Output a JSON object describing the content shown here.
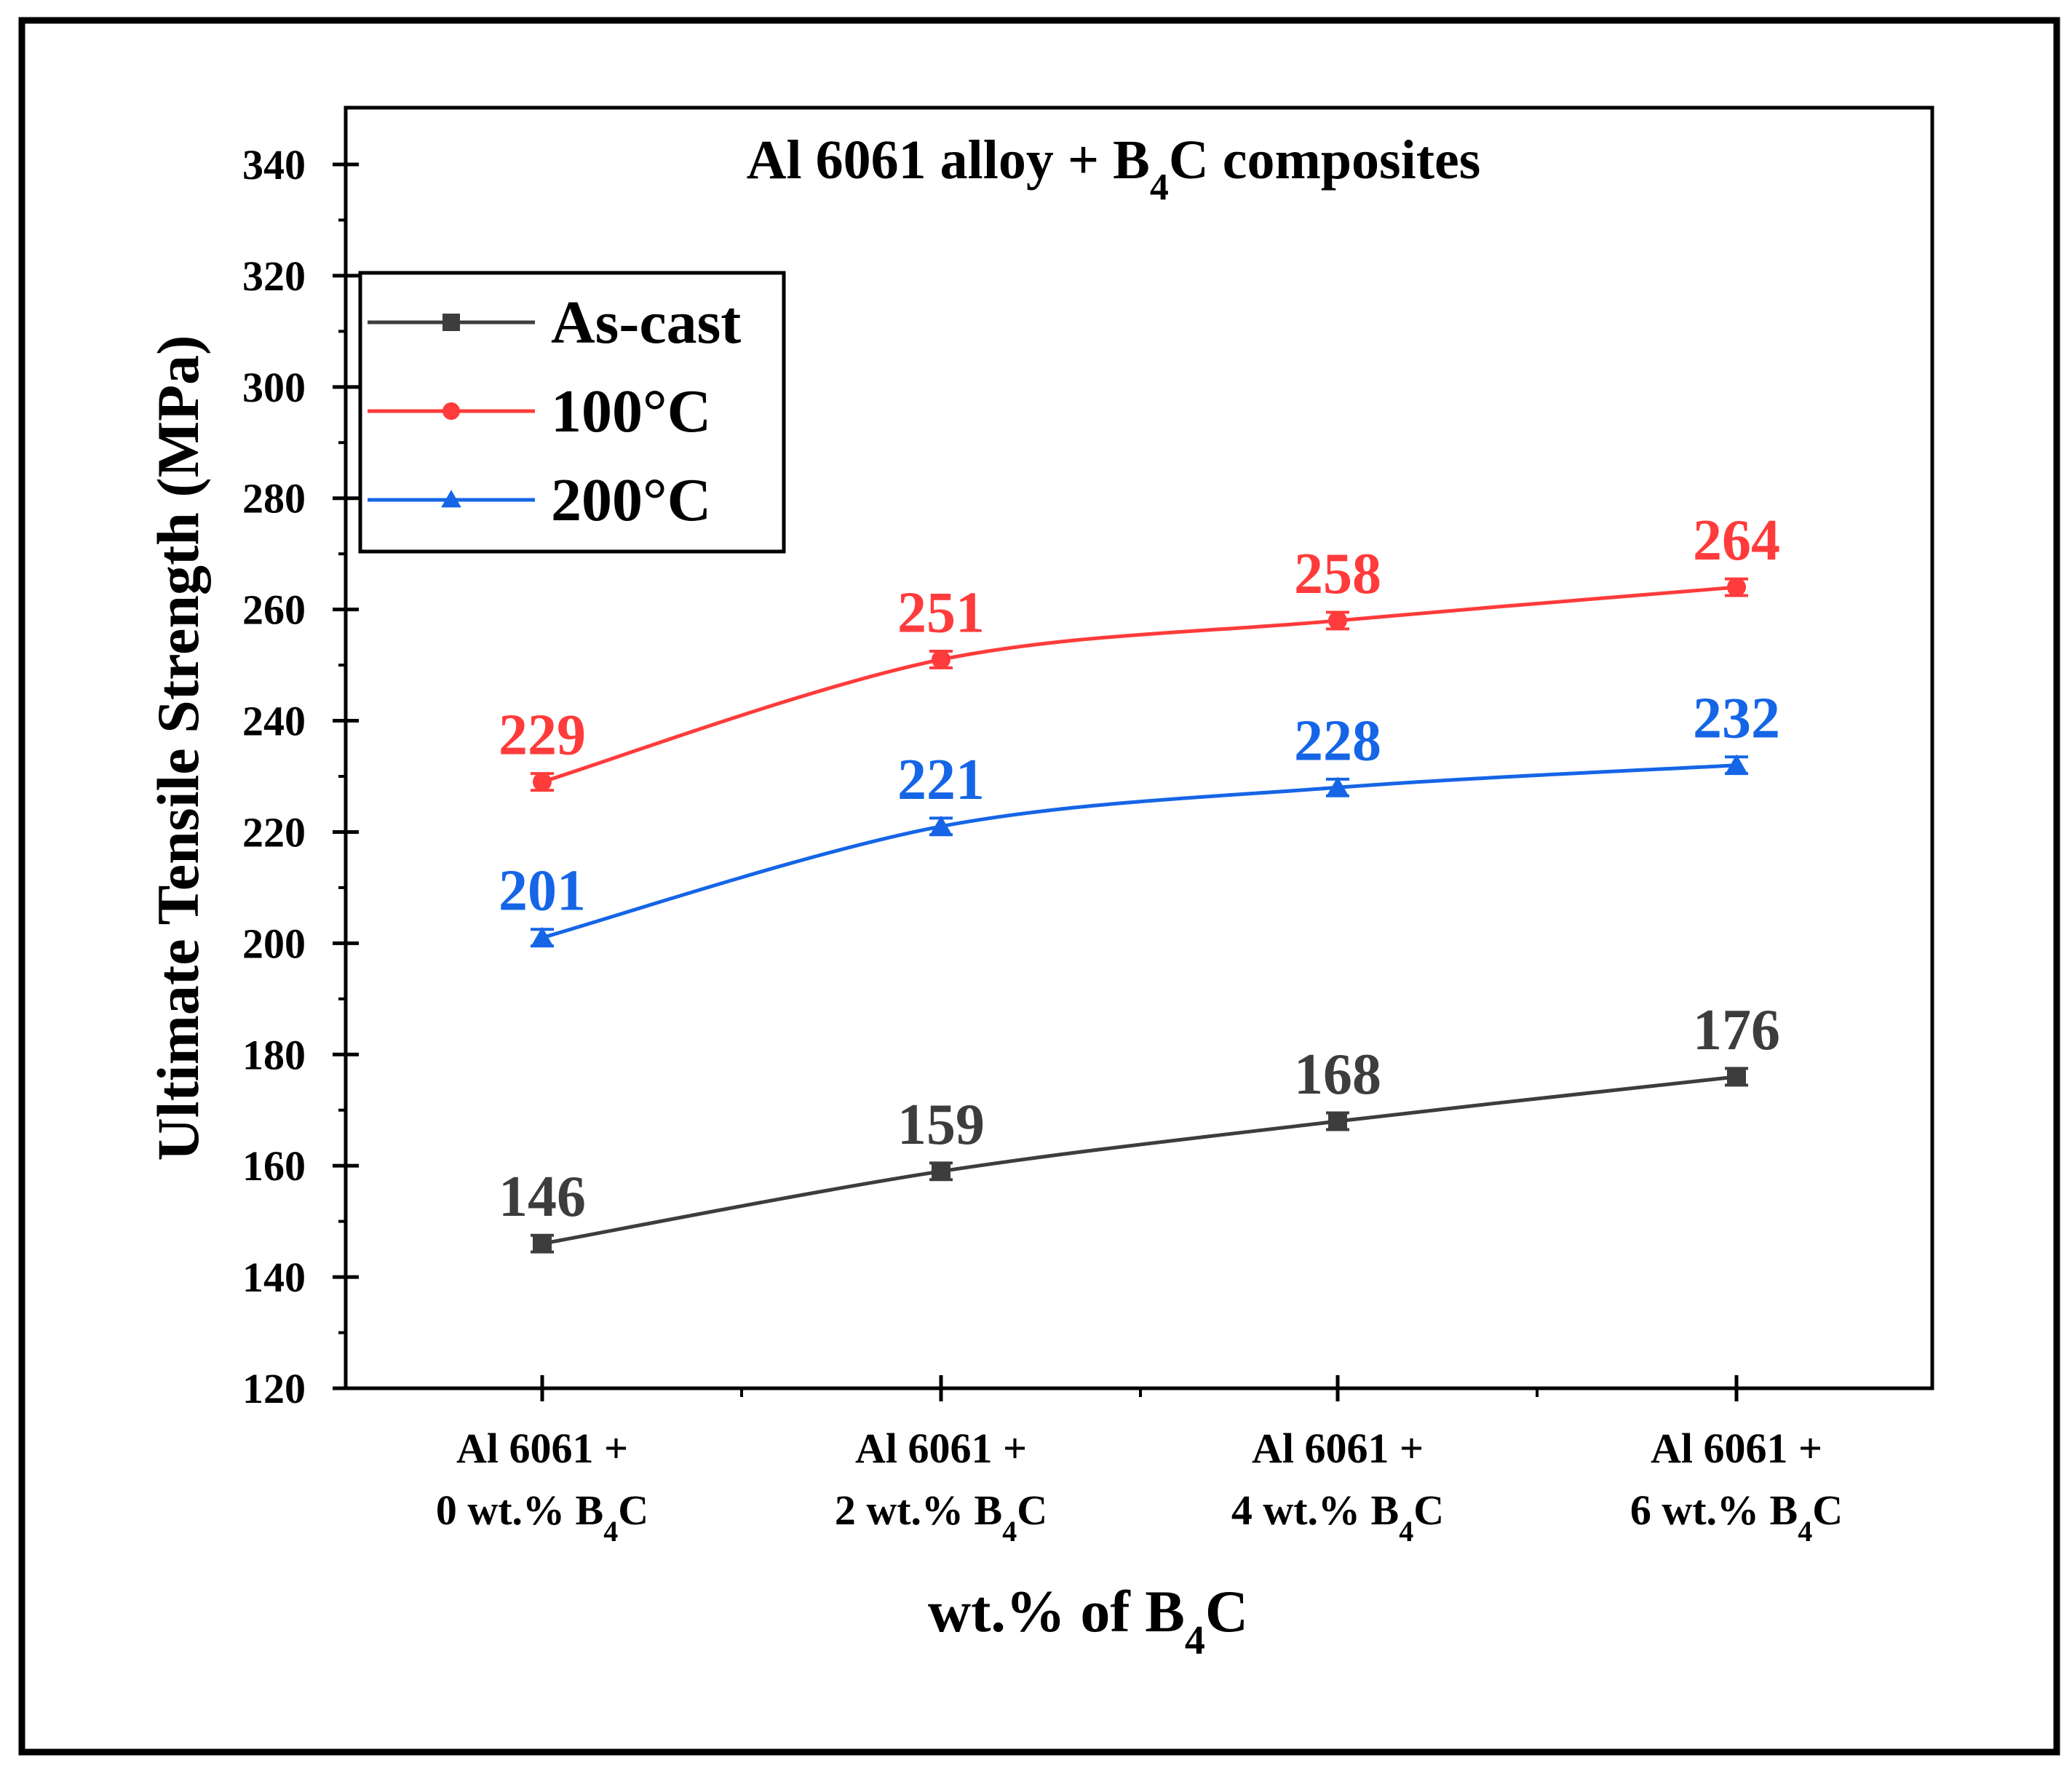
{
  "chart_data": {
    "type": "line",
    "title": {
      "prefix": "Al 6061 alloy + B",
      "subscript": "4",
      "suffix": "C composites"
    },
    "xlabel": {
      "prefix": "wt.% of B",
      "subscript": "4",
      "suffix": "C"
    },
    "ylabel": "Ultimate Tensile Strength (MPa)",
    "ylim": [
      120,
      340
    ],
    "y_major_ticks": [
      120,
      140,
      160,
      180,
      200,
      220,
      240,
      260,
      280,
      300,
      320,
      340
    ],
    "categories": [
      {
        "line1": "Al 6061 +",
        "line2_prefix": "0 wt.% B",
        "line2_subscript": "4",
        "line2_suffix": "C"
      },
      {
        "line1": "Al 6061 +",
        "line2_prefix": "2 wt.% B",
        "line2_subscript": "4",
        "line2_suffix": "C"
      },
      {
        "line1": "Al 6061 +",
        "line2_prefix": "4 wt.% B",
        "line2_subscript": "4",
        "line2_suffix": "C"
      },
      {
        "line1": "Al 6061 +",
        "line2_prefix": "6 wt.% B",
        "line2_subscript": "4",
        "line2_suffix": "C"
      }
    ],
    "series": [
      {
        "name": "As-cast",
        "color": "#3d3d3d",
        "marker": "square",
        "values": [
          146,
          159,
          168,
          176
        ],
        "error": [
          1.5,
          1.5,
          1.5,
          1.5
        ]
      },
      {
        "name": "100°C",
        "color": "#ff3b3b",
        "marker": "circle",
        "values": [
          229,
          251,
          258,
          264
        ],
        "error": [
          1.5,
          1.5,
          1.5,
          1.5
        ]
      },
      {
        "name": "200°C",
        "color": "#1565e6",
        "marker": "triangle",
        "values": [
          201,
          221,
          228,
          232
        ],
        "error": [
          1.5,
          1.5,
          1.5,
          1.5
        ]
      }
    ],
    "legend_position": "top-left"
  }
}
